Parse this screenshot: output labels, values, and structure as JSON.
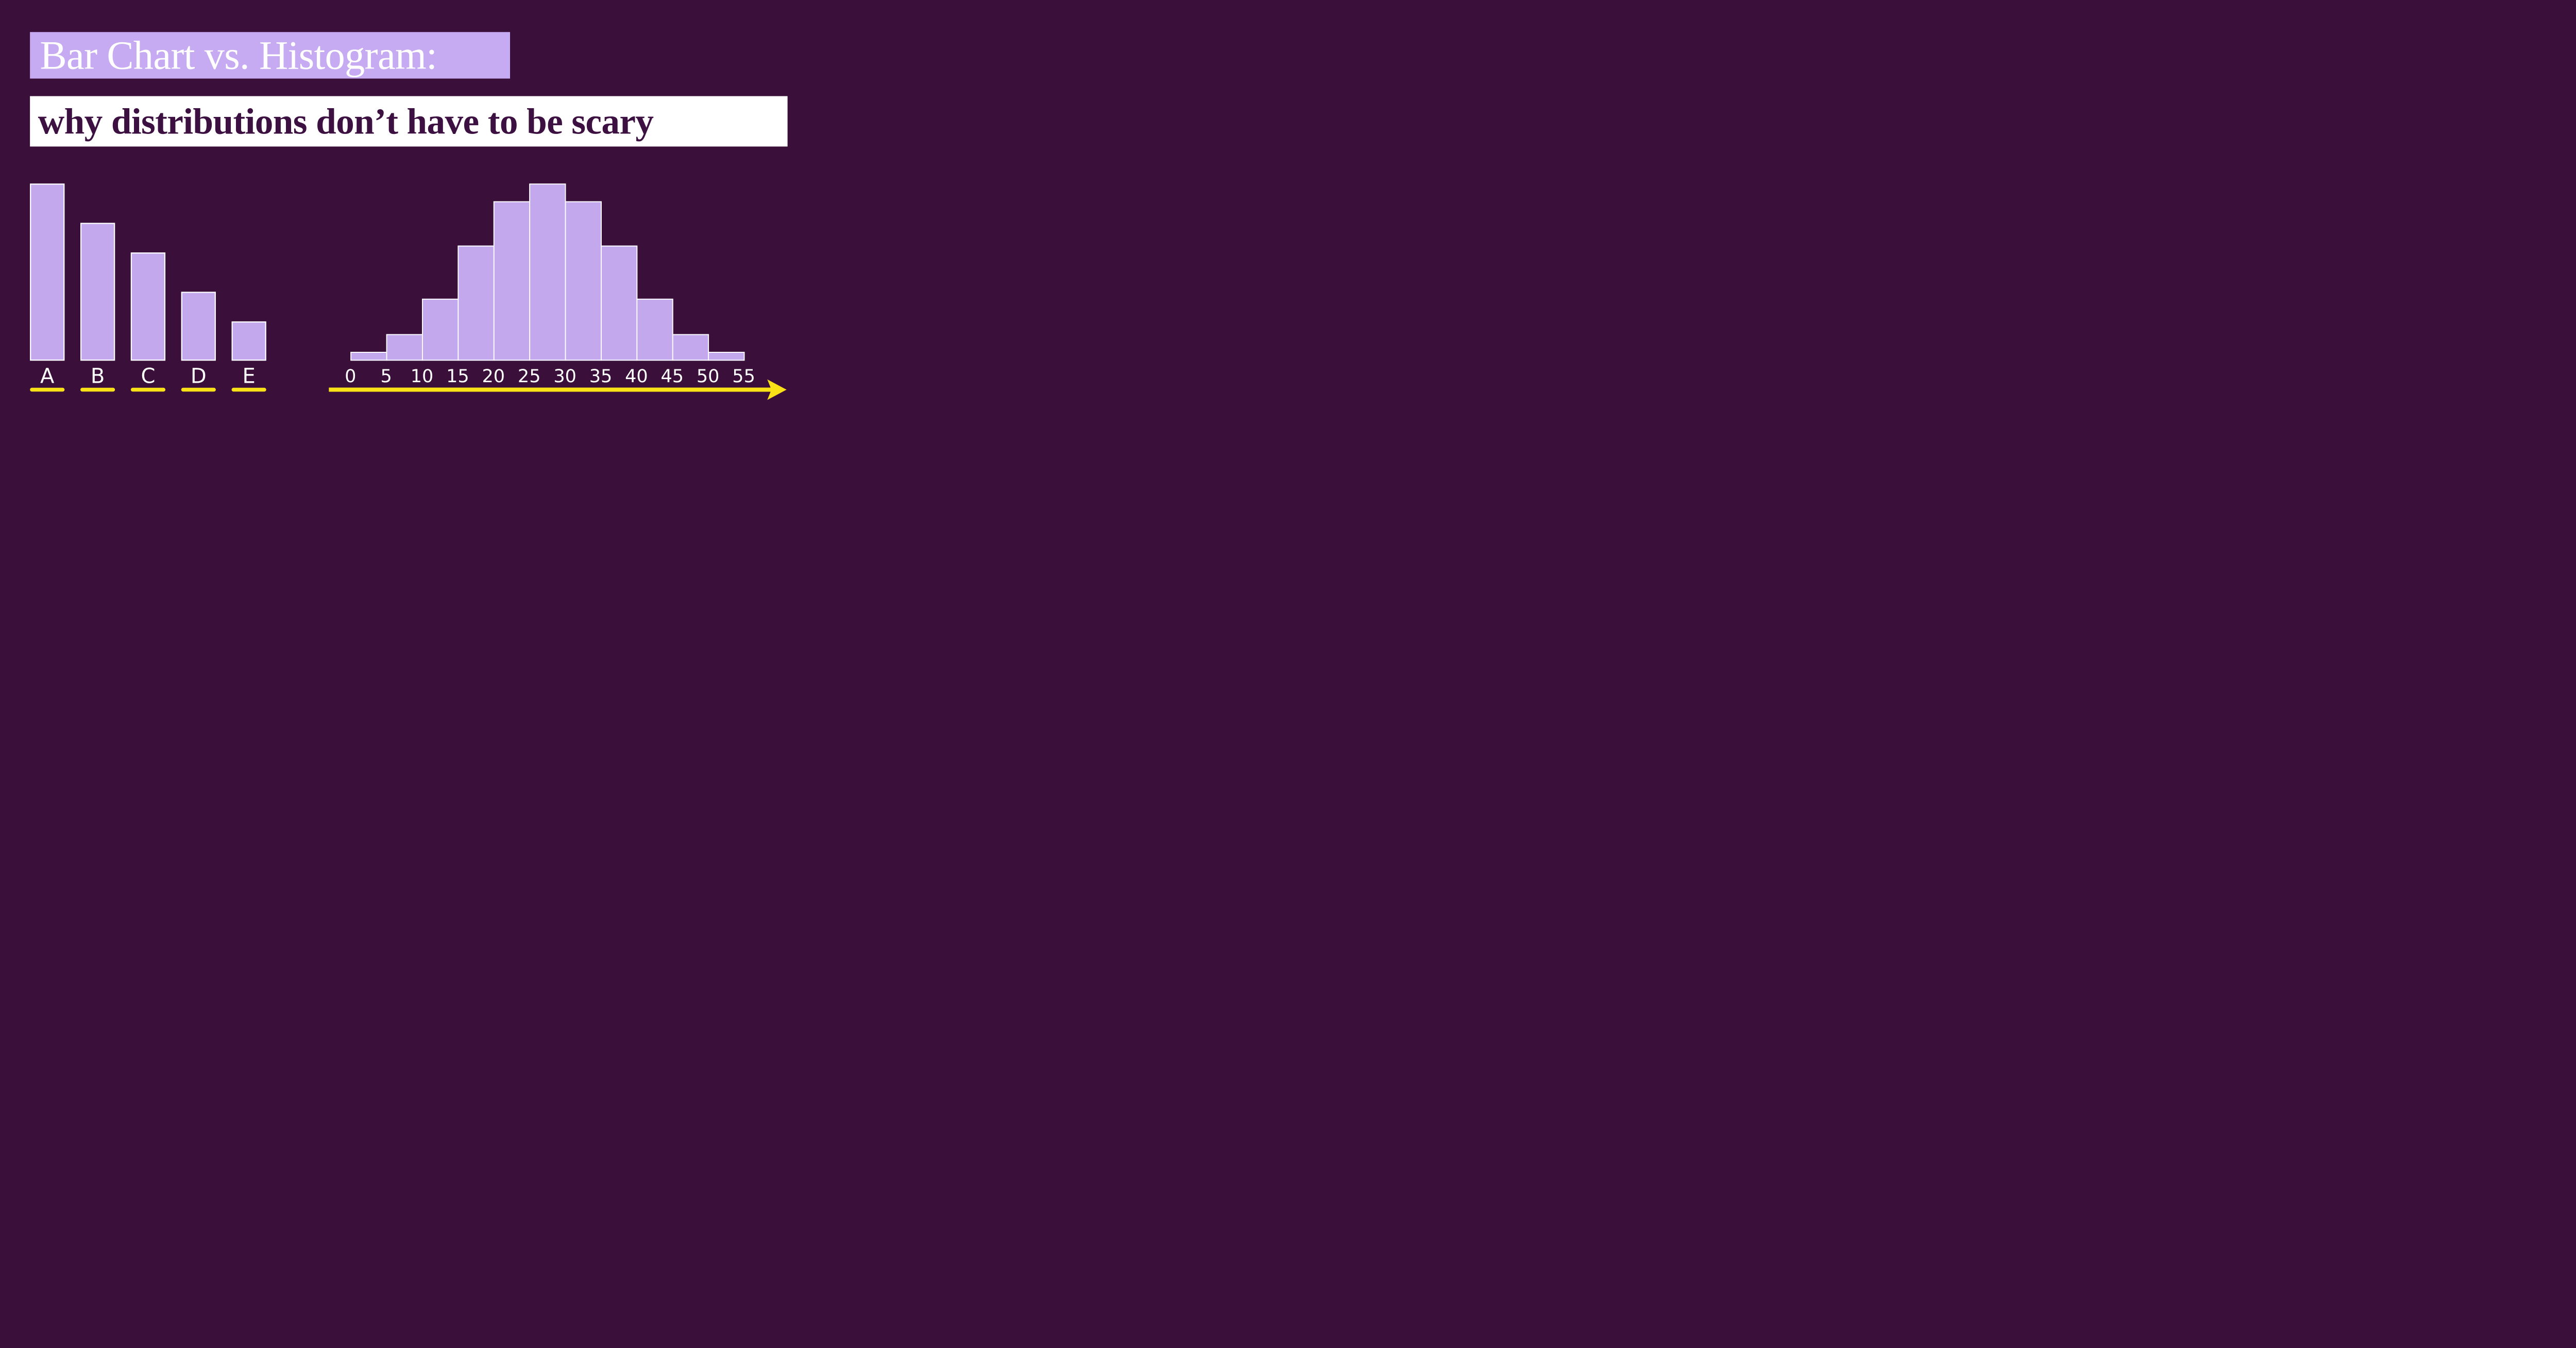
{
  "title": {
    "line1": "Bar Chart vs. Histogram:",
    "line2": "why distributions don’t have to be scary"
  },
  "colors": {
    "background": "#3a0f3a",
    "banner1_bg": "#c6abf2",
    "banner1_text": "#ffffff",
    "banner2_bg": "#ffffff",
    "banner2_text": "#3c1040",
    "bar_fill": "#c3a8ee",
    "bar_border": "#ffffff",
    "accent_yellow": "#f9e118",
    "axis_label_color": "#ffffff"
  },
  "chart_data": [
    {
      "type": "bar",
      "categories": [
        "A",
        "B",
        "C",
        "D",
        "E"
      ],
      "values": [
        18,
        14,
        11,
        7,
        4
      ],
      "xlabel": "",
      "ylabel": "",
      "y_axis_shown": false,
      "grid": false,
      "category_underlines": true,
      "bar_color": "#c3a8ee",
      "bar_border_color": "#ffffff",
      "underline_color": "#f9e118"
    },
    {
      "type": "histogram",
      "x_tick_labels": [
        "0",
        "5",
        "10",
        "15",
        "20",
        "25",
        "30",
        "35",
        "40",
        "45",
        "50",
        "55"
      ],
      "x_range": [
        0,
        55
      ],
      "bin_width": 5,
      "values": [
        1,
        3,
        7,
        13,
        18,
        20,
        18,
        13,
        7,
        3,
        1
      ],
      "xlabel": "",
      "ylabel": "",
      "y_axis_shown": false,
      "grid": false,
      "x_axis_arrow": true,
      "bar_color": "#c3a8ee",
      "bar_border_color": "#ffffff",
      "axis_color": "#f9e118"
    }
  ]
}
